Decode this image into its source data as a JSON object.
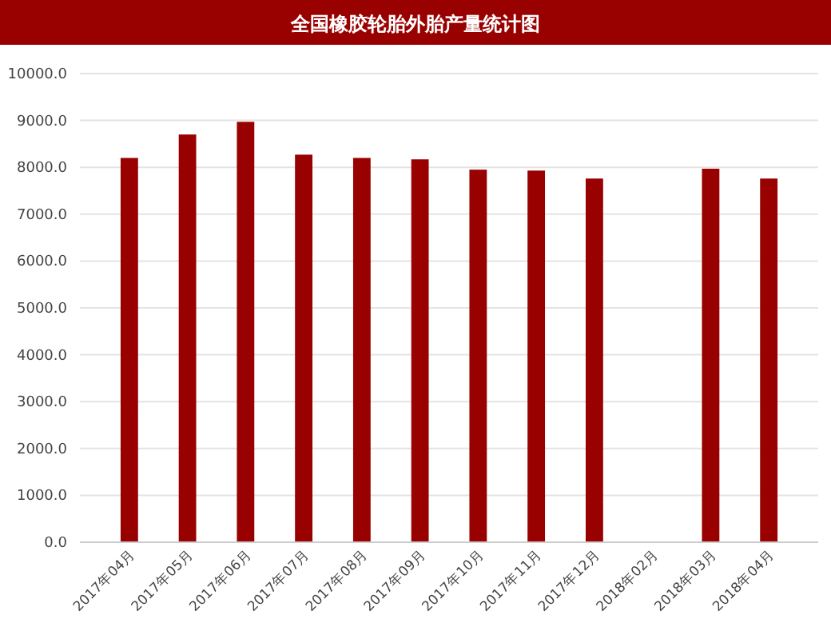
{
  "chart_data": {
    "type": "bar",
    "title": "全国橡胶轮胎外胎产量统计图",
    "categories": [
      "2017年04月",
      "2017年05月",
      "2017年06月",
      "2017年07月",
      "2017年08月",
      "2017年09月",
      "2017年10月",
      "2017年11月",
      "2017年12月",
      "2018年02月",
      "2018年03月",
      "2018年04月"
    ],
    "values": [
      8200,
      8700,
      8970,
      8270,
      8200,
      8170,
      7950,
      7930,
      7760,
      null,
      7970,
      7760
    ],
    "color": "#990000",
    "ylim": [
      0,
      10000
    ],
    "yticks": [
      {
        "value": 0,
        "label": "0.0"
      },
      {
        "value": 1000,
        "label": "1000.0"
      },
      {
        "value": 2000,
        "label": "2000.0"
      },
      {
        "value": 3000,
        "label": "3000.0"
      },
      {
        "value": 4000,
        "label": "4000.0"
      },
      {
        "value": 5000,
        "label": "5000.0"
      },
      {
        "value": 6000,
        "label": "6000.0"
      },
      {
        "value": 7000,
        "label": "7000.0"
      },
      {
        "value": 8000,
        "label": "8000.0"
      },
      {
        "value": 9000,
        "label": "9000.0"
      },
      {
        "value": 10000,
        "label": "10000.0"
      }
    ],
    "grid": "y"
  }
}
